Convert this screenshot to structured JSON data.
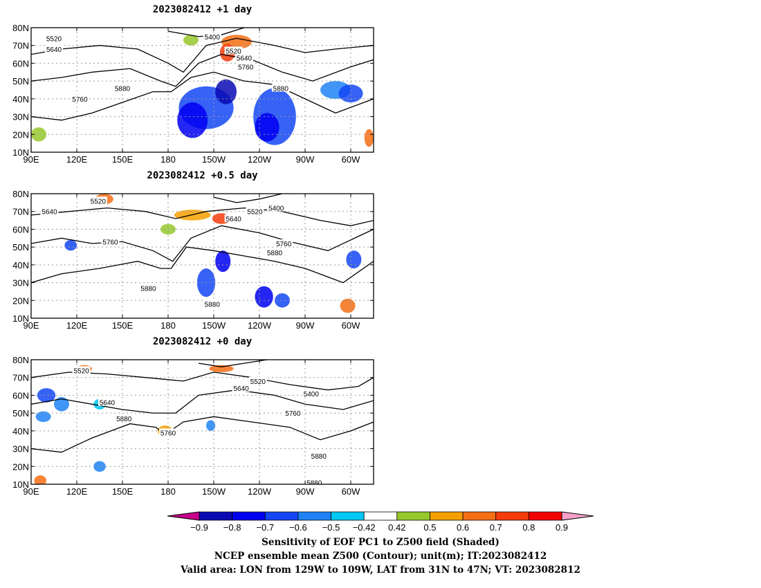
{
  "panels": [
    {
      "title": "2023082412 +1 day",
      "contour_labels": [
        {
          "text": "5520",
          "lon": 105,
          "lat": 74
        },
        {
          "text": "5640",
          "lon": 105,
          "lat": 68
        },
        {
          "text": "5400",
          "lon": 209,
          "lat": 75
        },
        {
          "text": "5520",
          "lon": 223,
          "lat": 67
        },
        {
          "text": "5640",
          "lon": 230,
          "lat": 63
        },
        {
          "text": "5760",
          "lon": 231,
          "lat": 58
        },
        {
          "text": "5880",
          "lon": 150,
          "lat": 46
        },
        {
          "text": "5760",
          "lon": 122,
          "lat": 40
        },
        {
          "text": "5880",
          "lon": 254,
          "lat": 46
        }
      ]
    },
    {
      "title": "2023082412 +0.5 day",
      "contour_labels": [
        {
          "text": "5520",
          "lon": 134,
          "lat": 76
        },
        {
          "text": "5640",
          "lon": 102,
          "lat": 70
        },
        {
          "text": "5520",
          "lon": 237,
          "lat": 70
        },
        {
          "text": "5400",
          "lon": 251,
          "lat": 72
        },
        {
          "text": "5640",
          "lon": 223,
          "lat": 66
        },
        {
          "text": "5760",
          "lon": 142,
          "lat": 53
        },
        {
          "text": "5760",
          "lon": 256,
          "lat": 52
        },
        {
          "text": "5880",
          "lon": 250,
          "lat": 47
        },
        {
          "text": "5880",
          "lon": 167,
          "lat": 27
        },
        {
          "text": "5880",
          "lon": 209,
          "lat": 18
        }
      ]
    },
    {
      "title": "2023082412 +0 day",
      "contour_labels": [
        {
          "text": "5520",
          "lon": 123,
          "lat": 74
        },
        {
          "text": "5520",
          "lon": 239,
          "lat": 68
        },
        {
          "text": "5640",
          "lon": 228,
          "lat": 64
        },
        {
          "text": "5400",
          "lon": 274,
          "lat": 61
        },
        {
          "text": "5640",
          "lon": 140,
          "lat": 56
        },
        {
          "text": "5760",
          "lon": 262,
          "lat": 50
        },
        {
          "text": "5880",
          "lon": 151,
          "lat": 47
        },
        {
          "text": "5760",
          "lon": 180,
          "lat": 39
        },
        {
          "text": "5880",
          "lon": 279,
          "lat": 26
        },
        {
          "text": "5880",
          "lon": 276,
          "lat": 11
        }
      ]
    }
  ],
  "map_data": {
    "lon_range": [
      90,
      315
    ],
    "lat_range": [
      10,
      80
    ],
    "lat_ticks": [
      {
        "value": 10,
        "label": "10N"
      },
      {
        "value": 20,
        "label": "20N"
      },
      {
        "value": 30,
        "label": "30N"
      },
      {
        "value": 40,
        "label": "40N"
      },
      {
        "value": 50,
        "label": "50N"
      },
      {
        "value": 60,
        "label": "60N"
      },
      {
        "value": 70,
        "label": "70N"
      },
      {
        "value": 80,
        "label": "80N"
      }
    ],
    "lon_ticks": [
      {
        "value": 90,
        "label": "90E"
      },
      {
        "value": 120,
        "label": "120E"
      },
      {
        "value": 150,
        "label": "150E"
      },
      {
        "value": 180,
        "label": "180"
      },
      {
        "value": 210,
        "label": "150W"
      },
      {
        "value": 240,
        "label": "120W"
      },
      {
        "value": 270,
        "label": "90W"
      },
      {
        "value": 300,
        "label": "60W"
      }
    ],
    "grid": true
  },
  "colorbar": {
    "colors": [
      "#c8008c",
      "#0a0ab4",
      "#0000f0",
      "#1446f5",
      "#1e82f5",
      "#00c8f5",
      "#ffffff",
      "#96c82d",
      "#f5a000",
      "#f56e14",
      "#f53c0a",
      "#f50000",
      "#f5a0c8"
    ],
    "tick_labels": [
      "−0.9",
      "−0.8",
      "−0.7",
      "−0.6",
      "−0.5",
      "−0.42",
      "0.42",
      "0.5",
      "0.6",
      "0.7",
      "0.8",
      "0.9"
    ]
  },
  "caption": {
    "line1": "Sensitivity of EOF PC1 to Z500 field (Shaded)",
    "line2": "NCEP ensemble mean Z500 (Contour); unit(m); IT:2023082412",
    "line3": "Valid area: LON from 129W to 109W, LAT from 31N to 47N; VT: 2023082812"
  }
}
